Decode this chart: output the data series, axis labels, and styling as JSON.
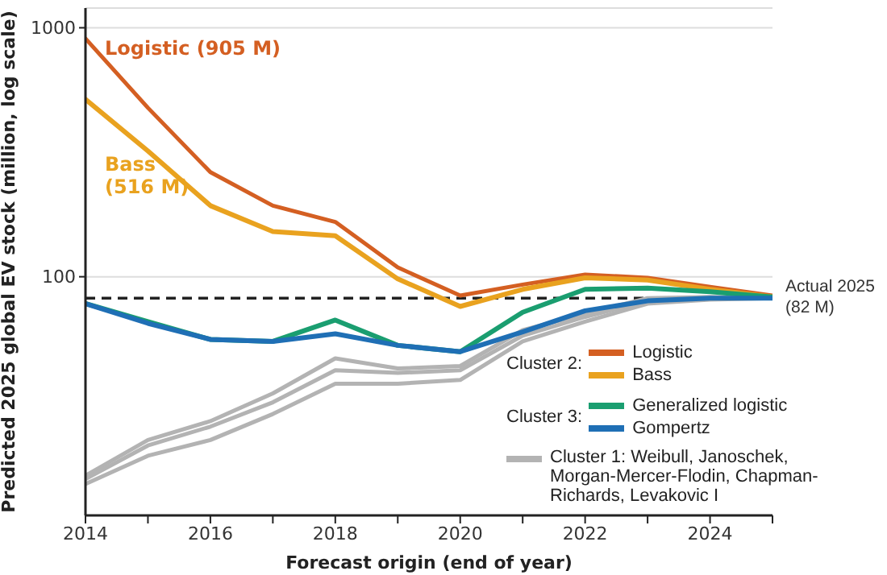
{
  "chart_data": {
    "type": "line",
    "xlabel": "Forecast origin (end of year)",
    "ylabel": "Predicted 2025 global EV stock (million, log scale)",
    "x": [
      2014,
      2015,
      2016,
      2017,
      2018,
      2019,
      2020,
      2021,
      2022,
      2023,
      2024,
      2025
    ],
    "xlim": [
      2014,
      2025
    ],
    "xticks": [
      2014,
      {
        "value": 2015,
        "label": null
      },
      2016,
      {
        "value": 2017,
        "label": null
      },
      2018,
      {
        "value": 2019,
        "label": null
      },
      2020,
      {
        "value": 2021,
        "label": null
      },
      2022,
      {
        "value": 2023,
        "label": null
      },
      2024,
      {
        "value": 2025,
        "label": null
      }
    ],
    "ylim": [
      11,
      1200
    ],
    "yticks": [
      100,
      1000
    ],
    "log": "y",
    "grid": "y",
    "legend": "bottom right",
    "marker": "none",
    "line_style": "solid",
    "series": [
      {
        "name": "Cluster 1: Weibull, Janoschek, Morgan-Mercer-Flodin, Chapman-Richards, Levakovic I",
        "color": "#b3b3b3",
        "values": [
          15.9,
          22.1,
          26.3,
          34,
          47,
          42.8,
          43.8,
          61,
          71,
          82,
          83,
          82
        ]
      },
      {
        "color": "#b3b3b3",
        "values": [
          15.4,
          21,
          25,
          31.3,
          42.1,
          41.1,
          42.1,
          58,
          69,
          80,
          82,
          82
        ]
      },
      {
        "color": "#b3b3b3",
        "values": [
          14.7,
          19.1,
          22.1,
          28.1,
          37.2,
          37.2,
          38.5,
          55,
          66,
          78,
          81,
          82
        ]
      },
      {
        "name": "Logistic",
        "color": "#d45f22",
        "values": [
          905,
          477,
          263,
          193,
          166,
          109,
          84,
          93,
          102,
          99,
          91,
          84
        ]
      },
      {
        "name": "Bass",
        "color": "#e9a21f",
        "values": [
          516,
          320,
          193,
          152,
          146,
          98,
          76,
          89,
          99,
          97,
          89,
          83
        ]
      },
      {
        "name": "Generalized logistic",
        "color": "#1a9e70",
        "values": [
          78,
          66,
          56,
          55,
          67,
          53,
          50,
          72,
          89,
          90,
          87,
          83
        ]
      },
      {
        "name": "Gompertz",
        "color": "#1f6fb5",
        "values": [
          78,
          65,
          56,
          55,
          59,
          53,
          50,
          60,
          73,
          80,
          82,
          82
        ]
      }
    ],
    "ref_lines": [
      {
        "axis": "y",
        "value": 82,
        "label": "Actual 2025\n(82 M)",
        "color": "#222222",
        "line_style": "dashed"
      }
    ],
    "annotations": [
      {
        "text": "Logistic  (905 M)",
        "x": 2014,
        "y": 905
      },
      "Bass\n(516 M)",
      "Cluster 2:",
      "Cluster 3:"
    ]
  }
}
